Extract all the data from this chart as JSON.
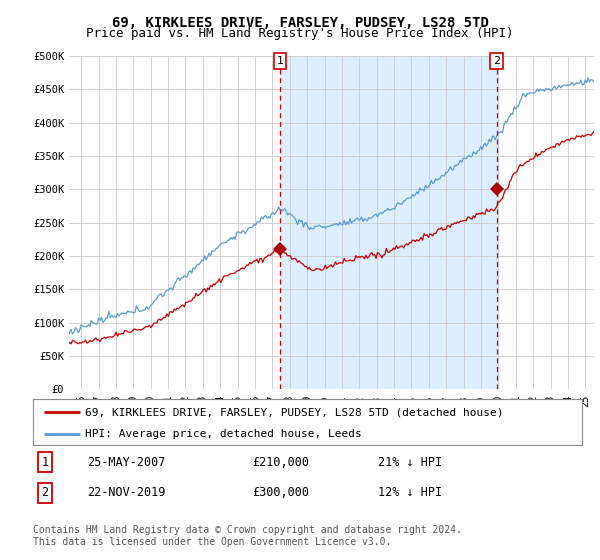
{
  "title": "69, KIRKLEES DRIVE, FARSLEY, PUDSEY, LS28 5TD",
  "subtitle": "Price paid vs. HM Land Registry's House Price Index (HPI)",
  "ylabel_ticks": [
    0,
    50000,
    100000,
    150000,
    200000,
    250000,
    300000,
    350000,
    400000,
    450000,
    500000
  ],
  "ylabel_labels": [
    "£0",
    "£50K",
    "£100K",
    "£150K",
    "£200K",
    "£250K",
    "£300K",
    "£350K",
    "£400K",
    "£450K",
    "£500K"
  ],
  "ylim": [
    0,
    500000
  ],
  "xlim_start": 1995.3,
  "xlim_end": 2025.5,
  "sale1_x": 2007.45,
  "sale1_y": 210000,
  "sale2_x": 2019.9,
  "sale2_y": 300000,
  "legend_line1": "69, KIRKLEES DRIVE, FARSLEY, PUDSEY, LS28 5TD (detached house)",
  "legend_line2": "HPI: Average price, detached house, Leeds",
  "table_row1_num": "1",
  "table_row1_date": "25-MAY-2007",
  "table_row1_price": "£210,000",
  "table_row1_hpi": "21% ↓ HPI",
  "table_row2_num": "2",
  "table_row2_date": "22-NOV-2019",
  "table_row2_price": "£300,000",
  "table_row2_hpi": "12% ↓ HPI",
  "footer": "Contains HM Land Registry data © Crown copyright and database right 2024.\nThis data is licensed under the Open Government Licence v3.0.",
  "hpi_color": "#5b9bd5",
  "sale_color": "#cc0000",
  "marker_color": "#aa0000",
  "vline_color": "#cc0000",
  "shade_color": "#ddeeff",
  "bg_color": "#ffffff",
  "grid_color": "#cccccc",
  "title_fontsize": 10,
  "subtitle_fontsize": 9,
  "tick_fontsize": 7.5,
  "legend_fontsize": 8,
  "footer_fontsize": 7
}
